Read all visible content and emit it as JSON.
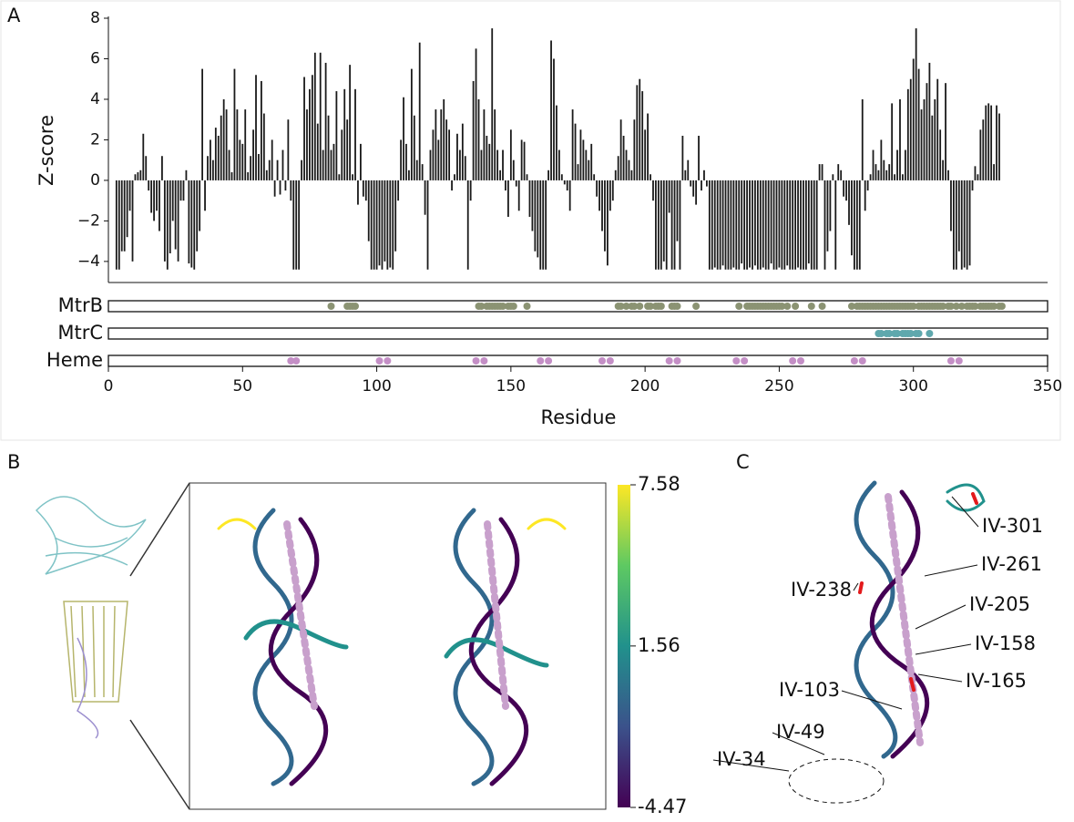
{
  "panels": [
    "A",
    "B",
    "C"
  ],
  "chart_data": {
    "type": "bar",
    "xlabel": "Residue",
    "ylabel": "Z-score",
    "color": "#1a1a1a",
    "xlim": [
      0,
      350
    ],
    "xticks": [
      0,
      50,
      100,
      150,
      200,
      250,
      300,
      350
    ],
    "ylim": [
      -5.04,
      8.09
    ],
    "yticks": [
      {
        "value": -4,
        "label": "−4"
      },
      {
        "value": -2,
        "label": "−2"
      },
      0,
      2,
      4,
      6,
      8
    ],
    "x": [
      3,
      4,
      5,
      6,
      7,
      8,
      9,
      10,
      11,
      12,
      13,
      14,
      15,
      16,
      17,
      18,
      19,
      20,
      21,
      22,
      23,
      24,
      25,
      26,
      27,
      28,
      29,
      30,
      31,
      32,
      33,
      34,
      35,
      36,
      37,
      38,
      39,
      40,
      41,
      42,
      43,
      44,
      45,
      46,
      47,
      48,
      49,
      50,
      51,
      52,
      53,
      54,
      55,
      56,
      57,
      58,
      59,
      60,
      61,
      62,
      63,
      64,
      65,
      66,
      67,
      68,
      69,
      70,
      71,
      72,
      73,
      74,
      75,
      76,
      77,
      78,
      79,
      80,
      81,
      82,
      83,
      84,
      85,
      86,
      87,
      88,
      89,
      90,
      91,
      92,
      93,
      94,
      95,
      96,
      97,
      98,
      99,
      100,
      101,
      102,
      103,
      104,
      105,
      106,
      107,
      108,
      109,
      110,
      111,
      112,
      113,
      114,
      115,
      116,
      117,
      118,
      119,
      120,
      121,
      122,
      123,
      124,
      125,
      126,
      127,
      128,
      129,
      130,
      131,
      132,
      133,
      134,
      135,
      136,
      137,
      138,
      139,
      140,
      141,
      142,
      143,
      144,
      145,
      146,
      147,
      148,
      149,
      150,
      151,
      152,
      153,
      154,
      155,
      156,
      157,
      158,
      159,
      160,
      161,
      162,
      163,
      164,
      165,
      166,
      167,
      168,
      169,
      170,
      171,
      172,
      173,
      174,
      175,
      176,
      177,
      178,
      179,
      180,
      181,
      182,
      183,
      184,
      185,
      186,
      187,
      188,
      189,
      190,
      191,
      192,
      193,
      194,
      195,
      196,
      197,
      198,
      199,
      200,
      201,
      202,
      203,
      204,
      205,
      206,
      207,
      208,
      209,
      210,
      211,
      212,
      213,
      214,
      215,
      216,
      217,
      218,
      219,
      220,
      221,
      222,
      223,
      224,
      225,
      226,
      227,
      228,
      229,
      230,
      231,
      232,
      233,
      234,
      235,
      236,
      237,
      238,
      239,
      240,
      241,
      242,
      243,
      244,
      245,
      246,
      247,
      248,
      249,
      250,
      251,
      252,
      253,
      254,
      255,
      256,
      257,
      258,
      259,
      260,
      261,
      262,
      263,
      264,
      265,
      266,
      267,
      268,
      269,
      270,
      271,
      272,
      273,
      274,
      275,
      276,
      277,
      278,
      279,
      280,
      281,
      282,
      283,
      284,
      285,
      286,
      287,
      288,
      289,
      290,
      291,
      292,
      293,
      294,
      295,
      296,
      297,
      298,
      299,
      300,
      301,
      302,
      303,
      304,
      305,
      306,
      307,
      308,
      309,
      310,
      311,
      312,
      313,
      314,
      315,
      316,
      317,
      318,
      319,
      320,
      321,
      322,
      323,
      324,
      325,
      326,
      327,
      328,
      329,
      330,
      331,
      332
    ],
    "values": [
      -4.4,
      -4.4,
      -3.5,
      -3.5,
      -2.8,
      -1.5,
      -4.0,
      0.3,
      0.4,
      0.5,
      2.3,
      1.2,
      -0.5,
      -1.6,
      -2.0,
      -1.5,
      -2.5,
      1.2,
      -4.0,
      -4.4,
      -3.6,
      -2.0,
      -3.4,
      -4.0,
      -1.0,
      -1.0,
      0.5,
      -4.1,
      -4.3,
      -4.4,
      -3.5,
      -2.5,
      5.5,
      -1.5,
      1.2,
      2.0,
      1.0,
      2.6,
      2.2,
      3.2,
      4.0,
      3.5,
      1.5,
      0.4,
      5.5,
      3.5,
      2.0,
      1.8,
      3.5,
      0.4,
      1.2,
      2.5,
      5.2,
      1.3,
      4.9,
      3.3,
      0.5,
      1.0,
      2.0,
      -0.8,
      1.0,
      -0.7,
      1.5,
      -0.5,
      3.0,
      -1.0,
      -4.4,
      -4.4,
      -4.4,
      1.0,
      5.1,
      3.5,
      4.5,
      5.2,
      6.3,
      2.8,
      6.3,
      1.5,
      5.8,
      3.2,
      1.5,
      1.8,
      4.4,
      0.3,
      2.5,
      4.5,
      3.0,
      5.7,
      0.3,
      4.5,
      -1.2,
      1.8,
      -0.8,
      -1.0,
      -3.0,
      -4.4,
      -4.4,
      -4.4,
      -4.2,
      -4.4,
      -4.0,
      -4.4,
      -4.3,
      -4.4,
      -3.5,
      -1.0,
      2.0,
      4.1,
      1.8,
      0.5,
      5.5,
      3.2,
      1.0,
      6.8,
      0.8,
      -1.7,
      -4.4,
      1.5,
      2.5,
      3.5,
      2.0,
      3.5,
      4.0,
      3.0,
      2.5,
      -0.5,
      0.3,
      2.3,
      1.5,
      2.8,
      1.2,
      -4.4,
      -1.0,
      4.9,
      6.5,
      4.0,
      1.5,
      3.5,
      2.2,
      1.8,
      7.5,
      3.5,
      1.5,
      0.5,
      1.5,
      -0.5,
      -1.8,
      2.5,
      1.0,
      -0.3,
      -1.5,
      2.0,
      1.9,
      0.3,
      -1.8,
      -2.5,
      -3.5,
      -3.8,
      -4.4,
      -4.4,
      -4.4,
      0.5,
      6.9,
      6.0,
      3.7,
      1.5,
      0.3,
      -0.2,
      -0.5,
      -1.5,
      3.5,
      2.8,
      0.8,
      2.5,
      2.0,
      1.5,
      1.0,
      1.8,
      0.3,
      -0.8,
      -1.5,
      -2.5,
      -3.5,
      -4.2,
      -1.5,
      -1.0,
      0.5,
      1.2,
      3.0,
      2.2,
      1.5,
      1.0,
      0.5,
      3.0,
      4.7,
      5.0,
      4.4,
      2.5,
      3.3,
      0.3,
      -1.0,
      -4.4,
      -4.4,
      -4.4,
      -4.0,
      -4.4,
      -1.6,
      -4.4,
      -4.4,
      -3.0,
      -4.4,
      2.2,
      0.5,
      1.0,
      -0.3,
      -0.8,
      -1.2,
      2.2,
      -0.5,
      0.5,
      -0.3,
      -4.4,
      -4.4,
      -4.3,
      -4.4,
      -4.4,
      -4.2,
      -4.4,
      -4.4,
      -4.4,
      -4.3,
      -4.4,
      -4.4,
      -4.1,
      -4.4,
      -4.4,
      -4.3,
      -4.4,
      -4.2,
      -4.4,
      -4.4,
      -4.3,
      -4.4,
      -4.4,
      -4.1,
      -4.4,
      -4.4,
      -4.3,
      -4.4,
      -4.4,
      -4.2,
      -4.4,
      -4.4,
      -4.4,
      -4.3,
      -4.4,
      -4.4,
      -4.4,
      -4.1,
      -4.4,
      -4.4,
      -4.4,
      0.8,
      0.8,
      -4.4,
      -3.5,
      -2.5,
      0.3,
      -4.4,
      0.8,
      0.5,
      -0.8,
      -1.0,
      -2.2,
      -3.7,
      -4.4,
      -4.4,
      -4.4,
      4.0,
      -1.5,
      -0.5,
      0.3,
      1.5,
      0.8,
      0.5,
      2.0,
      1.0,
      0.5,
      0.8,
      3.8,
      0.3,
      1.5,
      4.0,
      0.3,
      1.5,
      4.5,
      5.0,
      6.0,
      7.5,
      5.5,
      3.5,
      4.0,
      4.8,
      5.8,
      3.2,
      4.0,
      5.0,
      2.5,
      1.0,
      4.8,
      0.5,
      -2.5,
      -4.4,
      -4.4,
      -3.5,
      -4.4,
      -4.3,
      -4.4,
      -4.2,
      -0.5,
      0.7,
      0.3,
      2.5,
      3.0,
      3.7,
      3.8,
      3.7,
      0.8,
      3.7,
      3.3
    ],
    "tracks": [
      {
        "name": "MtrB",
        "color": "#8b9373",
        "residues": [
          83,
          89,
          90,
          91,
          92,
          138,
          139,
          141,
          142,
          143,
          144,
          145,
          146,
          147,
          149,
          150,
          151,
          156,
          190,
          191,
          193,
          195,
          196,
          198,
          201,
          202,
          204,
          205,
          206,
          210,
          211,
          212,
          219,
          235,
          238,
          239,
          240,
          241,
          242,
          243,
          244,
          245,
          246,
          247,
          248,
          249,
          250,
          251,
          253,
          256,
          262,
          266,
          277,
          279,
          280,
          281,
          282,
          283,
          284,
          285,
          286,
          287,
          288,
          289,
          290,
          291,
          292,
          293,
          294,
          295,
          296,
          297,
          298,
          299,
          300,
          302,
          303,
          304,
          305,
          306,
          307,
          308,
          309,
          310,
          311,
          313,
          314,
          316,
          318,
          320,
          321,
          322,
          323,
          325,
          326,
          327,
          328,
          329,
          330,
          332,
          333
        ]
      },
      {
        "name": "MtrC",
        "color": "#5fa8ad",
        "residues": [
          287,
          288,
          290,
          291,
          293,
          294,
          296,
          297,
          298,
          299,
          301,
          302,
          306
        ]
      },
      {
        "name": "Heme",
        "color": "#c48fc6",
        "residues": [
          68,
          70,
          101,
          104,
          137,
          140,
          161,
          164,
          184,
          187,
          209,
          212,
          234,
          237,
          255,
          258,
          278,
          281,
          314,
          317
        ]
      }
    ]
  },
  "colorbar": {
    "lim": [
      -4.47,
      7.58
    ],
    "ticks": [
      7.58,
      1.56,
      -4.47
    ]
  },
  "annotations": [
    "IV-301",
    "IV-261",
    "IV-238",
    "IV-205",
    "IV-158",
    "IV-165",
    "IV-103",
    "IV-49",
    "IV-34"
  ]
}
